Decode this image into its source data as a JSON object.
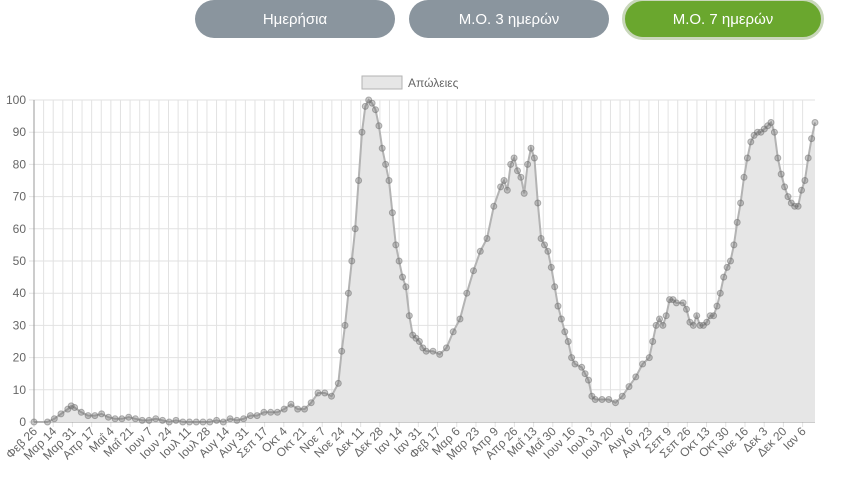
{
  "buttons": [
    {
      "label": "Ημερήσια",
      "active": false
    },
    {
      "label": "Μ.Ο. 3 ημερών",
      "active": false
    },
    {
      "label": "Μ.Ο. 7 ημερών",
      "active": true
    }
  ],
  "colors": {
    "inactive_button": "#8a959e",
    "active_button": "#6aa72e",
    "area_fill": "#e6e6e6",
    "line": "#b3b3b3",
    "point": "#6b6b6b",
    "grid": "#e2e2e2"
  },
  "chart_data": {
    "type": "area",
    "title": "",
    "xlabel": "",
    "ylabel": "",
    "ylim": [
      0,
      100
    ],
    "y_ticks": [
      0,
      10,
      20,
      30,
      40,
      50,
      60,
      70,
      80,
      90,
      100
    ],
    "grid": true,
    "legend_position": "top-center",
    "x_tick_labels": [
      "Φεβ 26",
      "Μαρ 14",
      "Μαρ 31",
      "Απρ 17",
      "Μαΐ 4",
      "Μαΐ 21",
      "Ιουν 7",
      "Ιουν 24",
      "Ιουλ 11",
      "Ιουλ 28",
      "Αυγ 14",
      "Αυγ 31",
      "Σεπ 17",
      "Οκτ 4",
      "Οκτ 21",
      "Νοε 7",
      "Νοε 24",
      "Δεκ 11",
      "Δεκ 28",
      "Ιαν 14",
      "Ιαν 31",
      "Φεβ 17",
      "Μαρ 6",
      "Μαρ 23",
      "Απρ 9",
      "Απρ 26",
      "Μαΐ 13",
      "Μαΐ 30",
      "Ιουν 16",
      "Ιουλ 3",
      "Ιουλ 20",
      "Αυγ 6",
      "Αυγ 23",
      "Σεπ 9",
      "Σεπ 26",
      "Οκτ 13",
      "Οκτ 30",
      "Νοε 16",
      "Δεκ 3",
      "Δεκ 20",
      "Ιαν 6"
    ],
    "series": [
      {
        "name": "Απώλειες",
        "points": [
          [
            0,
            0
          ],
          [
            4,
            0
          ],
          [
            6,
            1
          ],
          [
            8,
            2.5
          ],
          [
            10,
            4
          ],
          [
            11,
            5
          ],
          [
            12,
            4.5
          ],
          [
            14,
            3
          ],
          [
            16,
            2
          ],
          [
            18,
            2
          ],
          [
            20,
            2.5
          ],
          [
            22,
            1.5
          ],
          [
            24,
            1
          ],
          [
            26,
            1
          ],
          [
            28,
            1.5
          ],
          [
            30,
            1
          ],
          [
            32,
            0.5
          ],
          [
            34,
            0.5
          ],
          [
            36,
            1
          ],
          [
            38,
            0.5
          ],
          [
            40,
            0
          ],
          [
            42,
            0.5
          ],
          [
            44,
            0
          ],
          [
            46,
            0
          ],
          [
            48,
            0
          ],
          [
            50,
            0
          ],
          [
            52,
            0
          ],
          [
            54,
            0.5
          ],
          [
            56,
            0
          ],
          [
            58,
            1
          ],
          [
            60,
            0.5
          ],
          [
            62,
            1
          ],
          [
            64,
            2
          ],
          [
            66,
            2
          ],
          [
            68,
            3
          ],
          [
            70,
            3
          ],
          [
            72,
            3
          ],
          [
            74,
            4
          ],
          [
            76,
            5.5
          ],
          [
            78,
            4
          ],
          [
            80,
            4
          ],
          [
            82,
            6
          ],
          [
            84,
            9
          ],
          [
            86,
            9
          ],
          [
            88,
            8
          ],
          [
            90,
            12
          ],
          [
            91,
            22
          ],
          [
            92,
            30
          ],
          [
            93,
            40
          ],
          [
            94,
            50
          ],
          [
            95,
            60
          ],
          [
            96,
            75
          ],
          [
            97,
            90
          ],
          [
            98,
            98
          ],
          [
            99,
            100
          ],
          [
            100,
            99
          ],
          [
            101,
            97
          ],
          [
            102,
            92
          ],
          [
            103,
            85
          ],
          [
            104,
            80
          ],
          [
            105,
            75
          ],
          [
            106,
            65
          ],
          [
            107,
            55
          ],
          [
            108,
            50
          ],
          [
            109,
            45
          ],
          [
            110,
            42
          ],
          [
            111,
            33
          ],
          [
            112,
            27
          ],
          [
            113,
            26
          ],
          [
            114,
            25
          ],
          [
            115,
            23
          ],
          [
            116,
            22
          ],
          [
            118,
            22
          ],
          [
            120,
            21
          ],
          [
            122,
            23
          ],
          [
            124,
            28
          ],
          [
            126,
            32
          ],
          [
            128,
            40
          ],
          [
            130,
            47
          ],
          [
            132,
            53
          ],
          [
            134,
            57
          ],
          [
            136,
            67
          ],
          [
            138,
            73
          ],
          [
            139,
            75
          ],
          [
            140,
            72
          ],
          [
            141,
            80
          ],
          [
            142,
            82
          ],
          [
            143,
            78
          ],
          [
            144,
            76
          ],
          [
            145,
            71
          ],
          [
            146,
            80
          ],
          [
            147,
            85
          ],
          [
            148,
            82
          ],
          [
            149,
            68
          ],
          [
            150,
            57
          ],
          [
            151,
            55
          ],
          [
            152,
            53
          ],
          [
            153,
            48
          ],
          [
            154,
            42
          ],
          [
            155,
            36
          ],
          [
            156,
            32
          ],
          [
            157,
            28
          ],
          [
            158,
            25
          ],
          [
            159,
            20
          ],
          [
            160,
            18
          ],
          [
            162,
            17
          ],
          [
            163,
            15
          ],
          [
            164,
            13
          ],
          [
            165,
            8
          ],
          [
            166,
            7
          ],
          [
            168,
            7
          ],
          [
            170,
            7
          ],
          [
            172,
            6
          ],
          [
            174,
            8
          ],
          [
            176,
            11
          ],
          [
            178,
            14
          ],
          [
            180,
            18
          ],
          [
            182,
            20
          ],
          [
            183,
            25
          ],
          [
            184,
            30
          ],
          [
            185,
            32
          ],
          [
            186,
            30
          ],
          [
            187,
            33
          ],
          [
            188,
            38
          ],
          [
            189,
            38
          ],
          [
            190,
            37
          ],
          [
            192,
            37
          ],
          [
            193,
            35
          ],
          [
            194,
            31
          ],
          [
            195,
            30
          ],
          [
            196,
            33
          ],
          [
            197,
            30
          ],
          [
            198,
            30
          ],
          [
            199,
            31
          ],
          [
            200,
            33
          ],
          [
            201,
            33
          ],
          [
            202,
            36
          ],
          [
            203,
            40
          ],
          [
            204,
            45
          ],
          [
            205,
            48
          ],
          [
            206,
            50
          ],
          [
            207,
            55
          ],
          [
            208,
            62
          ],
          [
            209,
            68
          ],
          [
            210,
            76
          ],
          [
            211,
            82
          ],
          [
            212,
            87
          ],
          [
            213,
            89
          ],
          [
            214,
            90
          ],
          [
            215,
            90
          ],
          [
            216,
            91
          ],
          [
            217,
            92
          ],
          [
            218,
            93
          ],
          [
            219,
            90
          ],
          [
            220,
            82
          ],
          [
            221,
            77
          ],
          [
            222,
            73
          ],
          [
            223,
            70
          ],
          [
            224,
            68
          ],
          [
            225,
            67
          ],
          [
            226,
            67
          ],
          [
            227,
            72
          ],
          [
            228,
            75
          ],
          [
            229,
            82
          ],
          [
            230,
            88
          ],
          [
            231,
            93
          ]
        ]
      }
    ]
  }
}
